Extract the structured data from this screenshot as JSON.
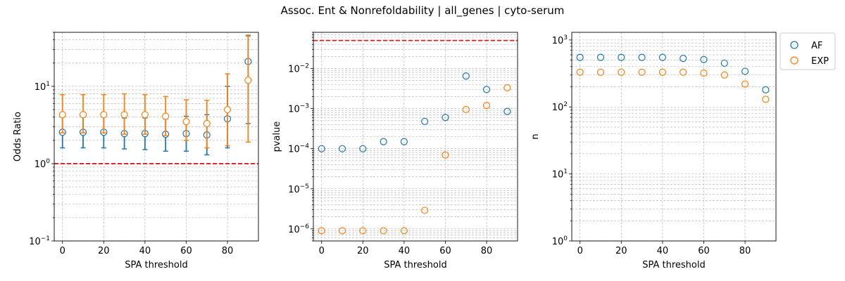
{
  "suptitle": "Assoc. Ent & Nonrefoldability | all_genes | cyto-serum",
  "colors": {
    "AF": "#1f77b4",
    "EXP": "#ff7f0e",
    "refline": "#e31a1c",
    "grid": "#b0b0b0"
  },
  "legend": {
    "placement": "outside-right",
    "entries": [
      "AF",
      "EXP"
    ]
  },
  "chart_data": [
    {
      "type": "scatter",
      "name": "odds_ratio",
      "xlabel": "SPA threshold",
      "ylabel": "Odds Ratio",
      "yscale": "log",
      "xlim": [
        -4,
        95
      ],
      "ylim": [
        0.1,
        50
      ],
      "xticks": [
        0,
        20,
        40,
        60,
        80
      ],
      "yticks": [
        {
          "value": 0.1,
          "base": "10",
          "exp": "−1"
        },
        {
          "value": 1,
          "base": "10",
          "exp": "0"
        },
        {
          "value": 10,
          "base": "10",
          "exp": "1"
        }
      ],
      "grid": true,
      "reference_line": 1,
      "x": [
        0,
        10,
        20,
        30,
        40,
        50,
        60,
        70,
        80,
        90
      ],
      "series": [
        {
          "name": "AF",
          "values": [
            2.55,
            2.55,
            2.55,
            2.45,
            2.45,
            2.4,
            2.45,
            2.35,
            3.8,
            21
          ],
          "err_low": [
            1.6,
            1.6,
            1.6,
            1.55,
            1.52,
            1.45,
            1.45,
            1.3,
            1.6,
            3.3
          ],
          "err_high": [
            4.0,
            4.0,
            4.0,
            3.9,
            3.9,
            3.8,
            4.1,
            4.3,
            10,
            45
          ]
        },
        {
          "name": "EXP",
          "values": [
            4.3,
            4.3,
            4.3,
            4.3,
            4.3,
            4.1,
            3.5,
            3.3,
            5.0,
            12
          ],
          "err_low": [
            2.5,
            2.5,
            2.5,
            2.4,
            2.4,
            2.3,
            2.0,
            1.6,
            1.7,
            1.9
          ],
          "err_high": [
            7.8,
            7.8,
            7.8,
            8.0,
            7.8,
            7.4,
            6.7,
            6.6,
            14.5,
            46
          ]
        }
      ]
    },
    {
      "type": "scatter",
      "name": "pvalue",
      "xlabel": "SPA threshold",
      "ylabel": "pvalue",
      "yscale": "log",
      "xlim": [
        -4,
        95
      ],
      "ylim": [
        5e-07,
        0.08
      ],
      "xticks": [
        0,
        20,
        40,
        60,
        80
      ],
      "yticks": [
        {
          "value": 1e-06,
          "base": "10",
          "exp": "−6"
        },
        {
          "value": 1e-05,
          "base": "10",
          "exp": "−5"
        },
        {
          "value": 0.0001,
          "base": "10",
          "exp": "−4"
        },
        {
          "value": 0.001,
          "base": "10",
          "exp": "−3"
        },
        {
          "value": 0.01,
          "base": "10",
          "exp": "−2"
        }
      ],
      "grid": true,
      "reference_line": 0.05,
      "x": [
        0,
        10,
        20,
        30,
        40,
        50,
        60,
        70,
        80,
        90
      ],
      "series": [
        {
          "name": "AF",
          "values": [
            0.0001,
            0.0001,
            0.0001,
            0.00015,
            0.00015,
            0.00048,
            0.0006,
            0.0065,
            0.003,
            0.00085
          ]
        },
        {
          "name": "EXP",
          "values": [
            9e-07,
            9e-07,
            9e-07,
            9e-07,
            9e-07,
            2.9e-06,
            7e-05,
            0.00095,
            0.0012,
            0.0033
          ]
        }
      ]
    },
    {
      "type": "scatter",
      "name": "n",
      "xlabel": "SPA threshold",
      "ylabel": "n",
      "yscale": "log",
      "xlim": [
        -4,
        95
      ],
      "ylim": [
        1,
        1300
      ],
      "xticks": [
        0,
        20,
        40,
        60,
        80
      ],
      "yticks": [
        {
          "value": 1,
          "base": "10",
          "exp": "0"
        },
        {
          "value": 10,
          "base": "10",
          "exp": "1"
        },
        {
          "value": 100,
          "base": "10",
          "exp": "2"
        },
        {
          "value": 1000,
          "base": "10",
          "exp": "3"
        }
      ],
      "grid": true,
      "x": [
        0,
        10,
        20,
        30,
        40,
        50,
        60,
        70,
        80,
        90
      ],
      "series": [
        {
          "name": "AF",
          "values": [
            550,
            550,
            550,
            550,
            550,
            530,
            510,
            450,
            340,
            180
          ]
        },
        {
          "name": "EXP",
          "values": [
            330,
            330,
            330,
            330,
            330,
            330,
            320,
            300,
            220,
            130
          ]
        }
      ]
    }
  ]
}
